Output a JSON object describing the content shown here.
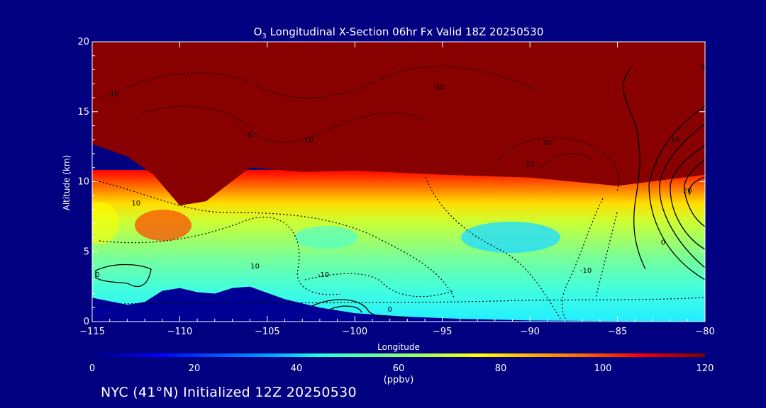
{
  "chart_data": {
    "type": "heatmap",
    "title_parts": {
      "species": "O",
      "subscript": "3",
      "rest": " Longitudinal X-Section 06hr  Fx Valid 18Z 20250530"
    },
    "xlabel": "Longitude",
    "ylabel": "Altitude (km)",
    "xlim": [
      -115,
      -80
    ],
    "ylim": [
      0,
      20
    ],
    "x_ticks": [
      -115,
      -110,
      -105,
      -100,
      -95,
      -90,
      -85,
      -80
    ],
    "x_tick_labels": [
      "−115",
      "−110",
      "−105",
      "−100",
      "−95",
      "−90",
      "−85",
      "−80"
    ],
    "y_ticks": [
      0,
      5,
      10,
      15,
      20
    ],
    "y_tick_labels": [
      "0",
      "5",
      "10",
      "15",
      "20"
    ],
    "colorbar": {
      "range": [
        0,
        120
      ],
      "ticks": [
        0,
        20,
        40,
        60,
        80,
        100,
        120
      ],
      "tick_labels": [
        "0",
        "20",
        "40",
        "60",
        "80",
        "100",
        "120"
      ],
      "unit": "(ppbv)"
    },
    "colors": {
      "background": "#000080",
      "saturated": "#880000",
      "terrain": "#000096",
      "contour": "#000000"
    },
    "tropopause_km": [
      {
        "lon": -115,
        "alt": 12.7
      },
      {
        "lon": -113,
        "alt": 11.8
      },
      {
        "lon": -111.5,
        "alt": 10.5
      },
      {
        "lon": -110,
        "alt": 8.3
      },
      {
        "lon": -108.5,
        "alt": 8.6
      },
      {
        "lon": -106,
        "alt": 11.0
      },
      {
        "lon": -103,
        "alt": 10.7
      },
      {
        "lon": -100,
        "alt": 10.8
      },
      {
        "lon": -95,
        "alt": 10.5
      },
      {
        "lon": -90,
        "alt": 10.3
      },
      {
        "lon": -85,
        "alt": 9.7
      },
      {
        "lon": -80,
        "alt": 10.5
      }
    ],
    "terrain_km": [
      {
        "lon": -115,
        "alt": 1.7
      },
      {
        "lon": -113,
        "alt": 1.2
      },
      {
        "lon": -112,
        "alt": 1.4
      },
      {
        "lon": -111,
        "alt": 2.2
      },
      {
        "lon": -110,
        "alt": 2.4
      },
      {
        "lon": -109,
        "alt": 2.1
      },
      {
        "lon": -108,
        "alt": 2.0
      },
      {
        "lon": -107,
        "alt": 2.4
      },
      {
        "lon": -106,
        "alt": 2.5
      },
      {
        "lon": -104,
        "alt": 1.6
      },
      {
        "lon": -102,
        "alt": 1.0
      },
      {
        "lon": -100,
        "alt": 0.6
      },
      {
        "lon": -97,
        "alt": 0.35
      },
      {
        "lon": -94,
        "alt": 0.2
      },
      {
        "lon": -90,
        "alt": 0.08
      },
      {
        "lon": -85,
        "alt": 0.04
      },
      {
        "lon": -80,
        "alt": 0.0
      }
    ],
    "contour_labels": [
      {
        "lon": -114.7,
        "alt": 3.2,
        "text": "0"
      },
      {
        "lon": -113.8,
        "alt": 16.1,
        "text": "-10"
      },
      {
        "lon": -112.5,
        "alt": 8.3,
        "text": "10"
      },
      {
        "lon": -106.0,
        "alt": 13.2,
        "text": "0"
      },
      {
        "lon": -102.7,
        "alt": 12.8,
        "text": "-10"
      },
      {
        "lon": -105.7,
        "alt": 3.8,
        "text": "10"
      },
      {
        "lon": -101.8,
        "alt": 3.2,
        "text": "-10"
      },
      {
        "lon": -98.0,
        "alt": 0.7,
        "text": "0"
      },
      {
        "lon": -95.2,
        "alt": 16.6,
        "text": "-10"
      },
      {
        "lon": -89.0,
        "alt": 12.6,
        "text": "20"
      },
      {
        "lon": -90.0,
        "alt": 11.1,
        "text": "10"
      },
      {
        "lon": -86.8,
        "alt": 3.5,
        "text": "-10"
      },
      {
        "lon": -82.4,
        "alt": 5.5,
        "text": "0"
      },
      {
        "lon": -81.0,
        "alt": 9.2,
        "text": "20"
      },
      {
        "lon": -81.7,
        "alt": 12.8,
        "text": "10"
      },
      {
        "lon": -80.1,
        "alt": 18.0,
        "text": "0"
      }
    ]
  },
  "footer": {
    "text": "NYC (41°N) Initialized 12Z 20250530"
  }
}
